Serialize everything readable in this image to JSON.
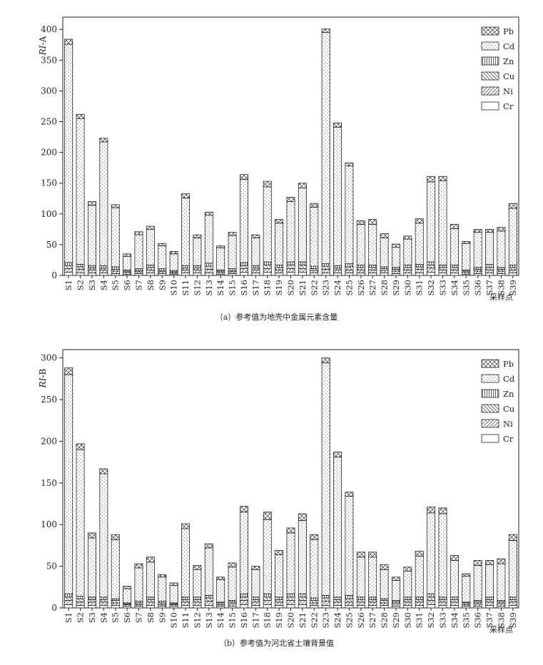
{
  "figure": {
    "categories": [
      "S1",
      "S2",
      "S3",
      "S4",
      "S5",
      "S6",
      "S7",
      "S8",
      "S9",
      "S10",
      "S11",
      "S12",
      "S13",
      "S14",
      "S15",
      "S16",
      "S17",
      "S18",
      "S19",
      "S20",
      "S21",
      "S22",
      "S23",
      "S24",
      "S25",
      "S26",
      "S27",
      "S28",
      "S29",
      "S30",
      "S31",
      "S32",
      "S33",
      "S34",
      "S35",
      "S36",
      "S37",
      "S38",
      "S39"
    ],
    "x_axis_title": "采样点",
    "legend_items": [
      {
        "name": "Pb",
        "pattern": "crosshatch"
      },
      {
        "name": "Cd",
        "pattern": "dots"
      },
      {
        "name": "Zn",
        "pattern": "vertical"
      },
      {
        "name": "Cu",
        "pattern": "backslash"
      },
      {
        "name": "Ni",
        "pattern": "slash"
      },
      {
        "name": "Cr",
        "pattern": "none"
      }
    ]
  },
  "chart_data": [
    {
      "type": "bar",
      "stacked": true,
      "caption": "（a）参考值为地壳中金属元素含量",
      "ylabel_italic": "RI",
      "ylabel_suffix": "-A",
      "ylim": [
        0,
        420
      ],
      "yticks": [
        0,
        50,
        100,
        150,
        200,
        250,
        300,
        350,
        400
      ],
      "x_axis_title": "采样点",
      "legend": "top-right",
      "categories": [
        "S1",
        "S2",
        "S3",
        "S4",
        "S5",
        "S6",
        "S7",
        "S8",
        "S9",
        "S10",
        "S11",
        "S12",
        "S13",
        "S14",
        "S15",
        "S16",
        "S17",
        "S18",
        "S19",
        "S20",
        "S21",
        "S22",
        "S23",
        "S24",
        "S25",
        "S26",
        "S27",
        "S28",
        "S29",
        "S30",
        "S31",
        "S32",
        "S33",
        "S34",
        "S35",
        "S36",
        "S37",
        "S38",
        "S39"
      ],
      "series": [
        {
          "name": "Cr",
          "values": [
            5,
            4,
            4,
            4,
            3,
            2,
            3,
            4,
            3,
            2,
            4,
            4,
            4,
            2,
            3,
            5,
            4,
            5,
            4,
            5,
            5,
            4,
            4,
            4,
            4,
            4,
            4,
            4,
            3,
            4,
            4,
            5,
            4,
            4,
            2,
            3,
            4,
            3,
            4
          ]
        },
        {
          "name": "Ni",
          "values": [
            6,
            6,
            5,
            5,
            4,
            3,
            3,
            5,
            3,
            2,
            5,
            5,
            6,
            3,
            3,
            6,
            5,
            6,
            5,
            6,
            6,
            4,
            6,
            5,
            5,
            5,
            5,
            4,
            4,
            5,
            6,
            7,
            5,
            5,
            3,
            4,
            5,
            4,
            5
          ]
        },
        {
          "name": "Cu",
          "values": [
            5,
            4,
            3,
            3,
            3,
            2,
            2,
            4,
            2,
            2,
            3,
            3,
            5,
            2,
            2,
            5,
            3,
            6,
            4,
            6,
            6,
            3,
            5,
            3,
            5,
            4,
            4,
            3,
            3,
            4,
            4,
            5,
            4,
            4,
            2,
            3,
            4,
            3,
            4
          ]
        },
        {
          "name": "Zn",
          "values": [
            5,
            4,
            4,
            4,
            4,
            2,
            3,
            4,
            3,
            2,
            4,
            4,
            5,
            2,
            3,
            5,
            4,
            5,
            4,
            5,
            5,
            4,
            4,
            4,
            5,
            4,
            4,
            3,
            3,
            4,
            4,
            5,
            4,
            4,
            2,
            3,
            5,
            3,
            4
          ]
        },
        {
          "name": "Cd",
          "values": [
            355,
            237,
            98,
            201,
            96,
            22,
            55,
            58,
            37,
            27,
            110,
            45,
            78,
            36,
            54,
            135,
            45,
            122,
            68,
            98,
            120,
            96,
            376,
            225,
            159,
            66,
            66,
            47,
            33,
            42,
            67,
            130,
            137,
            59,
            43,
            57,
            52,
            59,
            92
          ]
        },
        {
          "name": "Pb",
          "values": [
            8,
            7,
            6,
            6,
            5,
            4,
            5,
            5,
            4,
            4,
            7,
            5,
            5,
            3,
            5,
            8,
            5,
            9,
            6,
            7,
            8,
            6,
            6,
            7,
            5,
            6,
            8,
            7,
            5,
            5,
            7,
            9,
            7,
            7,
            3,
            5,
            5,
            6,
            8
          ]
        }
      ]
    },
    {
      "type": "bar",
      "stacked": true,
      "caption": "（b）参考值为河北省土壤背景值",
      "ylabel_italic": "RI",
      "ylabel_suffix": "-B",
      "ylim": [
        0,
        310
      ],
      "yticks": [
        0,
        50,
        100,
        150,
        200,
        250,
        300
      ],
      "x_axis_title": "采样点",
      "legend": "top-right",
      "categories": [
        "S1",
        "S2",
        "S3",
        "S4",
        "S5",
        "S6",
        "S7",
        "S8",
        "S9",
        "S10",
        "S11",
        "S12",
        "S13",
        "S14",
        "S15",
        "S16",
        "S17",
        "S18",
        "S19",
        "S20",
        "S21",
        "S22",
        "S23",
        "S24",
        "S25",
        "S26",
        "S27",
        "S28",
        "S29",
        "S30",
        "S31",
        "S32",
        "S33",
        "S34",
        "S35",
        "S36",
        "S37",
        "S38",
        "S39"
      ],
      "series": [
        {
          "name": "Cr",
          "values": [
            4,
            3,
            3,
            3,
            3,
            2,
            2,
            3,
            2,
            2,
            3,
            3,
            3,
            2,
            2,
            4,
            3,
            4,
            3,
            4,
            4,
            3,
            3,
            3,
            3,
            3,
            3,
            3,
            2,
            3,
            3,
            4,
            3,
            3,
            2,
            2,
            3,
            2,
            3
          ]
        },
        {
          "name": "Ni",
          "values": [
            5,
            4,
            4,
            4,
            3,
            2,
            2,
            4,
            2,
            2,
            4,
            4,
            5,
            2,
            3,
            5,
            4,
            5,
            4,
            5,
            5,
            3,
            5,
            4,
            4,
            4,
            4,
            3,
            3,
            4,
            4,
            5,
            4,
            4,
            2,
            3,
            4,
            3,
            4
          ]
        },
        {
          "name": "Cu",
          "values": [
            4,
            4,
            3,
            3,
            3,
            1,
            2,
            3,
            2,
            1,
            3,
            3,
            4,
            2,
            2,
            4,
            3,
            4,
            3,
            4,
            4,
            3,
            4,
            3,
            4,
            3,
            3,
            3,
            2,
            3,
            3,
            4,
            3,
            3,
            2,
            2,
            3,
            2,
            3
          ]
        },
        {
          "name": "Zn",
          "values": [
            4,
            3,
            3,
            3,
            2,
            1,
            2,
            3,
            2,
            1,
            3,
            3,
            3,
            1,
            2,
            4,
            3,
            4,
            3,
            4,
            4,
            3,
            3,
            3,
            4,
            3,
            3,
            2,
            2,
            3,
            3,
            4,
            3,
            3,
            1,
            2,
            3,
            2,
            3
          ]
        },
        {
          "name": "Cd",
          "values": [
            263,
            176,
            71,
            148,
            71,
            17,
            40,
            42,
            29,
            21,
            82,
            33,
            57,
            27,
            40,
            98,
            33,
            89,
            51,
            73,
            88,
            70,
            279,
            168,
            119,
            48,
            48,
            35,
            24,
            31,
            49,
            97,
            100,
            44,
            31,
            42,
            39,
            44,
            68
          ]
        },
        {
          "name": "Pb",
          "values": [
            8,
            7,
            6,
            6,
            6,
            3,
            5,
            6,
            3,
            3,
            6,
            5,
            5,
            3,
            5,
            7,
            4,
            9,
            5,
            6,
            8,
            6,
            6,
            6,
            5,
            6,
            6,
            6,
            4,
            5,
            6,
            7,
            7,
            6,
            3,
            6,
            5,
            6,
            7
          ]
        }
      ]
    }
  ]
}
